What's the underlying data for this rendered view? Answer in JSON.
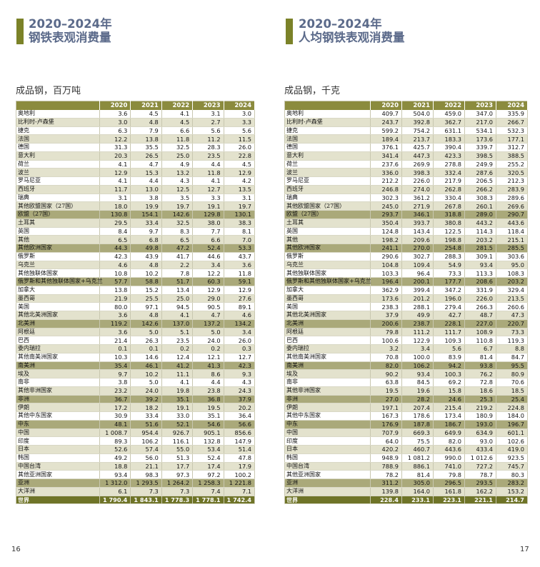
{
  "left": {
    "title_line1": "2020–2024年",
    "title_line2": "钢铁表观消费量",
    "subtitle": "成品钢，百万吨",
    "page_number": "16",
    "columns": [
      "2020",
      "2021",
      "2022",
      "2023",
      "2024"
    ],
    "rows": [
      {
        "label": "奥地利",
        "values": [
          "3.6",
          "4.5",
          "4.1",
          "3.1",
          "3.0"
        ]
      },
      {
        "label": "比利时-卢森堡",
        "values": [
          "3.0",
          "4.8",
          "4.5",
          "2.7",
          "3.3"
        ]
      },
      {
        "label": "捷克",
        "values": [
          "6.3",
          "7.9",
          "6.6",
          "5.6",
          "5.6"
        ]
      },
      {
        "label": "法国",
        "values": [
          "12.2",
          "13.8",
          "11.8",
          "11.2",
          "11.5"
        ]
      },
      {
        "label": "德国",
        "values": [
          "31.3",
          "35.5",
          "32.5",
          "28.3",
          "26.0"
        ]
      },
      {
        "label": "意大利",
        "values": [
          "20.3",
          "26.5",
          "25.0",
          "23.5",
          "22.8"
        ]
      },
      {
        "label": "荷兰",
        "values": [
          "4.1",
          "4.7",
          "4.9",
          "4.4",
          "4.5"
        ]
      },
      {
        "label": "波兰",
        "values": [
          "12.9",
          "15.3",
          "13.2",
          "11.8",
          "12.9"
        ]
      },
      {
        "label": "罗马尼亚",
        "values": [
          "4.1",
          "4.4",
          "4.3",
          "4.1",
          "4.2"
        ]
      },
      {
        "label": "西班牙",
        "values": [
          "11.7",
          "13.0",
          "12.5",
          "12.7",
          "13.5"
        ]
      },
      {
        "label": "瑞典",
        "values": [
          "3.1",
          "3.8",
          "3.5",
          "3.3",
          "3.1"
        ]
      },
      {
        "label": "其他欧盟国家（27国）",
        "values": [
          "18.0",
          "19.9",
          "19.7",
          "19.1",
          "19.7"
        ]
      },
      {
        "label": "欧盟（27国）",
        "values": [
          "130.8",
          "154.1",
          "142.6",
          "129.8",
          "130.1"
        ],
        "kind": "subtotal"
      },
      {
        "label": "土耳其",
        "values": [
          "29.5",
          "33.4",
          "32.5",
          "38.0",
          "38.3"
        ]
      },
      {
        "label": "英国",
        "values": [
          "8.4",
          "9.7",
          "8.3",
          "7.7",
          "8.1"
        ]
      },
      {
        "label": "其他",
        "values": [
          "6.5",
          "6.8",
          "6.5",
          "6.6",
          "7.0"
        ]
      },
      {
        "label": "其他欧洲国家",
        "values": [
          "44.3",
          "49.8",
          "47.2",
          "52.4",
          "53.3"
        ],
        "kind": "subtotal"
      },
      {
        "label": "俄罗斯",
        "values": [
          "42.3",
          "43.9",
          "41.7",
          "44.6",
          "43.7"
        ]
      },
      {
        "label": "乌克兰",
        "values": [
          "4.6",
          "4.8",
          "2.2",
          "3.4",
          "3.6"
        ]
      },
      {
        "label": "其他独联体国家",
        "values": [
          "10.8",
          "10.2",
          "7.8",
          "12.2",
          "11.8"
        ]
      },
      {
        "label": "俄罗斯和其他独联体国家+乌克兰",
        "values": [
          "57.7",
          "58.8",
          "51.7",
          "60.3",
          "59.1"
        ],
        "kind": "subtotal"
      },
      {
        "label": "加拿大",
        "values": [
          "13.8",
          "15.2",
          "13.4",
          "12.9",
          "12.9"
        ]
      },
      {
        "label": "墨西哥",
        "values": [
          "21.9",
          "25.5",
          "25.0",
          "29.0",
          "27.6"
        ]
      },
      {
        "label": "美国",
        "values": [
          "80.0",
          "97.1",
          "94.5",
          "90.5",
          "89.1"
        ]
      },
      {
        "label": "其他北美洲国家",
        "values": [
          "3.6",
          "4.8",
          "4.1",
          "4.7",
          "4.6"
        ]
      },
      {
        "label": "北美洲",
        "values": [
          "119.2",
          "142.6",
          "137.0",
          "137.2",
          "134.2"
        ],
        "kind": "subtotal"
      },
      {
        "label": "阿根廷",
        "values": [
          "3.6",
          "5.0",
          "5.1",
          "5.0",
          "3.4"
        ]
      },
      {
        "label": "巴西",
        "values": [
          "21.4",
          "26.3",
          "23.5",
          "24.0",
          "26.0"
        ]
      },
      {
        "label": "委内瑞拉",
        "values": [
          "0.1",
          "0.1",
          "0.2",
          "0.2",
          "0.3"
        ]
      },
      {
        "label": "其他南美洲国家",
        "values": [
          "10.3",
          "14.6",
          "12.4",
          "12.1",
          "12.7"
        ]
      },
      {
        "label": "南美洲",
        "values": [
          "35.4",
          "46.1",
          "41.2",
          "41.3",
          "42.3"
        ],
        "kind": "subtotal"
      },
      {
        "label": "埃及",
        "values": [
          "9.7",
          "10.2",
          "11.1",
          "8.6",
          "9.3"
        ]
      },
      {
        "label": "南非",
        "values": [
          "3.8",
          "5.0",
          "4.1",
          "4.4",
          "4.3"
        ]
      },
      {
        "label": "其他非洲国家",
        "values": [
          "23.2",
          "24.0",
          "19.8",
          "23.8",
          "24.3"
        ]
      },
      {
        "label": "非洲",
        "values": [
          "36.7",
          "39.2",
          "35.1",
          "36.8",
          "37.9"
        ],
        "kind": "subtotal"
      },
      {
        "label": "伊朗",
        "values": [
          "17.2",
          "18.2",
          "19.1",
          "19.5",
          "20.2"
        ]
      },
      {
        "label": "其他中东国家",
        "values": [
          "30.9",
          "33.4",
          "33.0",
          "35.1",
          "36.4"
        ]
      },
      {
        "label": "中东",
        "values": [
          "48.1",
          "51.6",
          "52.1",
          "54.6",
          "56.6"
        ],
        "kind": "subtotal"
      },
      {
        "label": "中国",
        "values": [
          "1 008.7",
          "954.4",
          "926.7",
          "905.1",
          "856.6"
        ]
      },
      {
        "label": "印度",
        "values": [
          "89.3",
          "106.2",
          "116.1",
          "132.8",
          "147.9"
        ]
      },
      {
        "label": "日本",
        "values": [
          "52.6",
          "57.4",
          "55.0",
          "53.4",
          "51.4"
        ]
      },
      {
        "label": "韩国",
        "values": [
          "49.2",
          "56.0",
          "51.3",
          "52.4",
          "47.8"
        ]
      },
      {
        "label": "中国台湾",
        "values": [
          "18.8",
          "21.1",
          "17.7",
          "17.4",
          "17.9"
        ]
      },
      {
        "label": "其他亚洲国家",
        "values": [
          "93.4",
          "98.3",
          "97.3",
          "97.2",
          "100.2"
        ]
      },
      {
        "label": "亚洲",
        "values": [
          "1 312.0",
          "1 293.5",
          "1 264.2",
          "1 258.3",
          "1 221.8"
        ],
        "kind": "subtotal"
      },
      {
        "label": "大洋洲",
        "values": [
          "6.1",
          "7.3",
          "7.3",
          "7.4",
          "7.1"
        ]
      },
      {
        "label": "世界",
        "values": [
          "1 790.4",
          "1 843.1",
          "1 778.3",
          "1 778.1",
          "1 742.4"
        ],
        "kind": "total"
      }
    ]
  },
  "right": {
    "title_line1": "2020–2024年",
    "title_line2": "人均钢铁表观消费量",
    "subtitle": "成品钢，千克",
    "page_number": "17",
    "columns": [
      "2020",
      "2021",
      "2022",
      "2023",
      "2024"
    ],
    "rows": [
      {
        "label": "奥地利",
        "values": [
          "409.7",
          "504.0",
          "459.0",
          "347.0",
          "335.9"
        ]
      },
      {
        "label": "比利时-卢森堡",
        "values": [
          "243.7",
          "392.8",
          "362.7",
          "217.0",
          "266.7"
        ]
      },
      {
        "label": "捷克",
        "values": [
          "599.2",
          "754.2",
          "631.1",
          "534.1",
          "532.3"
        ]
      },
      {
        "label": "法国",
        "values": [
          "189.4",
          "213.7",
          "183.3",
          "173.6",
          "177.1"
        ]
      },
      {
        "label": "德国",
        "values": [
          "376.1",
          "425.7",
          "390.4",
          "339.7",
          "312.7"
        ]
      },
      {
        "label": "意大利",
        "values": [
          "341.4",
          "447.3",
          "423.3",
          "398.5",
          "388.5"
        ]
      },
      {
        "label": "荷兰",
        "values": [
          "237.6",
          "269.9",
          "278.8",
          "249.9",
          "255.2"
        ]
      },
      {
        "label": "波兰",
        "values": [
          "336.0",
          "398.3",
          "332.4",
          "287.6",
          "320.5"
        ]
      },
      {
        "label": "罗马尼亚",
        "values": [
          "212.2",
          "226.0",
          "217.9",
          "206.5",
          "212.3"
        ]
      },
      {
        "label": "西班牙",
        "values": [
          "246.8",
          "274.0",
          "262.8",
          "266.2",
          "283.9"
        ]
      },
      {
        "label": "瑞典",
        "values": [
          "302.3",
          "361.2",
          "330.4",
          "308.3",
          "289.6"
        ]
      },
      {
        "label": "其他欧盟国家（27国）",
        "values": [
          "245.0",
          "271.9",
          "267.8",
          "260.1",
          "269.6"
        ]
      },
      {
        "label": "欧盟（27国）",
        "values": [
          "293.7",
          "346.1",
          "318.8",
          "289.0",
          "290.7"
        ],
        "kind": "subtotal"
      },
      {
        "label": "土耳其",
        "values": [
          "350.4",
          "393.7",
          "380.8",
          "443.2",
          "443.6"
        ]
      },
      {
        "label": "英国",
        "values": [
          "124.8",
          "143.4",
          "122.5",
          "114.3",
          "118.4"
        ]
      },
      {
        "label": "其他",
        "values": [
          "198.2",
          "209.6",
          "198.8",
          "203.2",
          "215.1"
        ]
      },
      {
        "label": "其他欧洲国家",
        "values": [
          "241.1",
          "270.0",
          "254.8",
          "281.5",
          "285.5"
        ],
        "kind": "subtotal"
      },
      {
        "label": "俄罗斯",
        "values": [
          "290.6",
          "302.7",
          "288.3",
          "309.1",
          "303.6"
        ]
      },
      {
        "label": "乌克兰",
        "values": [
          "104.8",
          "109.4",
          "54.9",
          "93.4",
          "95.0"
        ]
      },
      {
        "label": "其他独联体国家",
        "values": [
          "103.3",
          "96.4",
          "73.3",
          "113.3",
          "108.3"
        ]
      },
      {
        "label": "俄罗斯和其他独联体国家+乌克兰",
        "values": [
          "196.4",
          "200.1",
          "177.7",
          "208.6",
          "203.2"
        ],
        "kind": "subtotal"
      },
      {
        "label": "加拿大",
        "values": [
          "362.9",
          "399.4",
          "347.2",
          "331.9",
          "329.4"
        ]
      },
      {
        "label": "墨西哥",
        "values": [
          "173.6",
          "201.2",
          "196.0",
          "226.0",
          "213.5"
        ]
      },
      {
        "label": "美国",
        "values": [
          "238.3",
          "288.1",
          "279.4",
          "266.3",
          "260.6"
        ]
      },
      {
        "label": "其他北美洲国家",
        "values": [
          "37.9",
          "49.9",
          "42.7",
          "48.7",
          "47.3"
        ]
      },
      {
        "label": "北美洲",
        "values": [
          "200.6",
          "238.7",
          "228.1",
          "227.0",
          "220.7"
        ],
        "kind": "subtotal"
      },
      {
        "label": "阿根廷",
        "values": [
          "79.8",
          "111.2",
          "111.7",
          "108.9",
          "73.3"
        ]
      },
      {
        "label": "巴西",
        "values": [
          "100.6",
          "122.9",
          "109.3",
          "110.8",
          "119.3"
        ]
      },
      {
        "label": "委内瑞拉",
        "values": [
          "3.2",
          "3.4",
          "5.6",
          "6.7",
          "8.8"
        ]
      },
      {
        "label": "其他南美洲国家",
        "values": [
          "70.8",
          "100.0",
          "83.9",
          "81.4",
          "84.7"
        ]
      },
      {
        "label": "南美洲",
        "values": [
          "82.0",
          "106.2",
          "94.2",
          "93.8",
          "95.5"
        ],
        "kind": "subtotal"
      },
      {
        "label": "埃及",
        "values": [
          "90.2",
          "93.4",
          "100.3",
          "76.2",
          "80.9"
        ]
      },
      {
        "label": "南非",
        "values": [
          "63.8",
          "84.5",
          "69.2",
          "72.8",
          "70.6"
        ]
      },
      {
        "label": "其他非洲国家",
        "values": [
          "19.5",
          "19.6",
          "15.8",
          "18.6",
          "18.5"
        ]
      },
      {
        "label": "非洲",
        "values": [
          "27.0",
          "28.2",
          "24.6",
          "25.3",
          "25.4"
        ],
        "kind": "subtotal"
      },
      {
        "label": "伊朗",
        "values": [
          "197.1",
          "207.4",
          "215.4",
          "219.2",
          "224.8"
        ]
      },
      {
        "label": "其他中东国家",
        "values": [
          "167.3",
          "178.6",
          "173.4",
          "180.9",
          "184.0"
        ]
      },
      {
        "label": "中东",
        "values": [
          "176.9",
          "187.8",
          "186.7",
          "193.0",
          "196.7"
        ],
        "kind": "subtotal"
      },
      {
        "label": "中国",
        "values": [
          "707.9",
          "669.3",
          "649.9",
          "634.9",
          "601.1"
        ]
      },
      {
        "label": "印度",
        "values": [
          "64.0",
          "75.5",
          "82.0",
          "93.0",
          "102.6"
        ]
      },
      {
        "label": "日本",
        "values": [
          "420.2",
          "460.7",
          "443.6",
          "433.4",
          "419.0"
        ]
      },
      {
        "label": "韩国",
        "values": [
          "948.9",
          "1 081.2",
          "990.0",
          "1 012.6",
          "923.5"
        ]
      },
      {
        "label": "中国台湾",
        "values": [
          "788.9",
          "886.1",
          "741.0",
          "727.2",
          "745.7"
        ]
      },
      {
        "label": "其他亚洲国家",
        "values": [
          "78.2",
          "81.4",
          "79.8",
          "78.7",
          "80.3"
        ]
      },
      {
        "label": "亚洲",
        "values": [
          "311.2",
          "305.0",
          "296.5",
          "293.5",
          "283.2"
        ],
        "kind": "subtotal"
      },
      {
        "label": "大洋洲",
        "values": [
          "139.8",
          "164.0",
          "161.8",
          "162.2",
          "153.2"
        ]
      },
      {
        "label": "世界",
        "values": [
          "228.4",
          "233.1",
          "223.1",
          "221.1",
          "214.7"
        ],
        "kind": "total"
      }
    ]
  }
}
